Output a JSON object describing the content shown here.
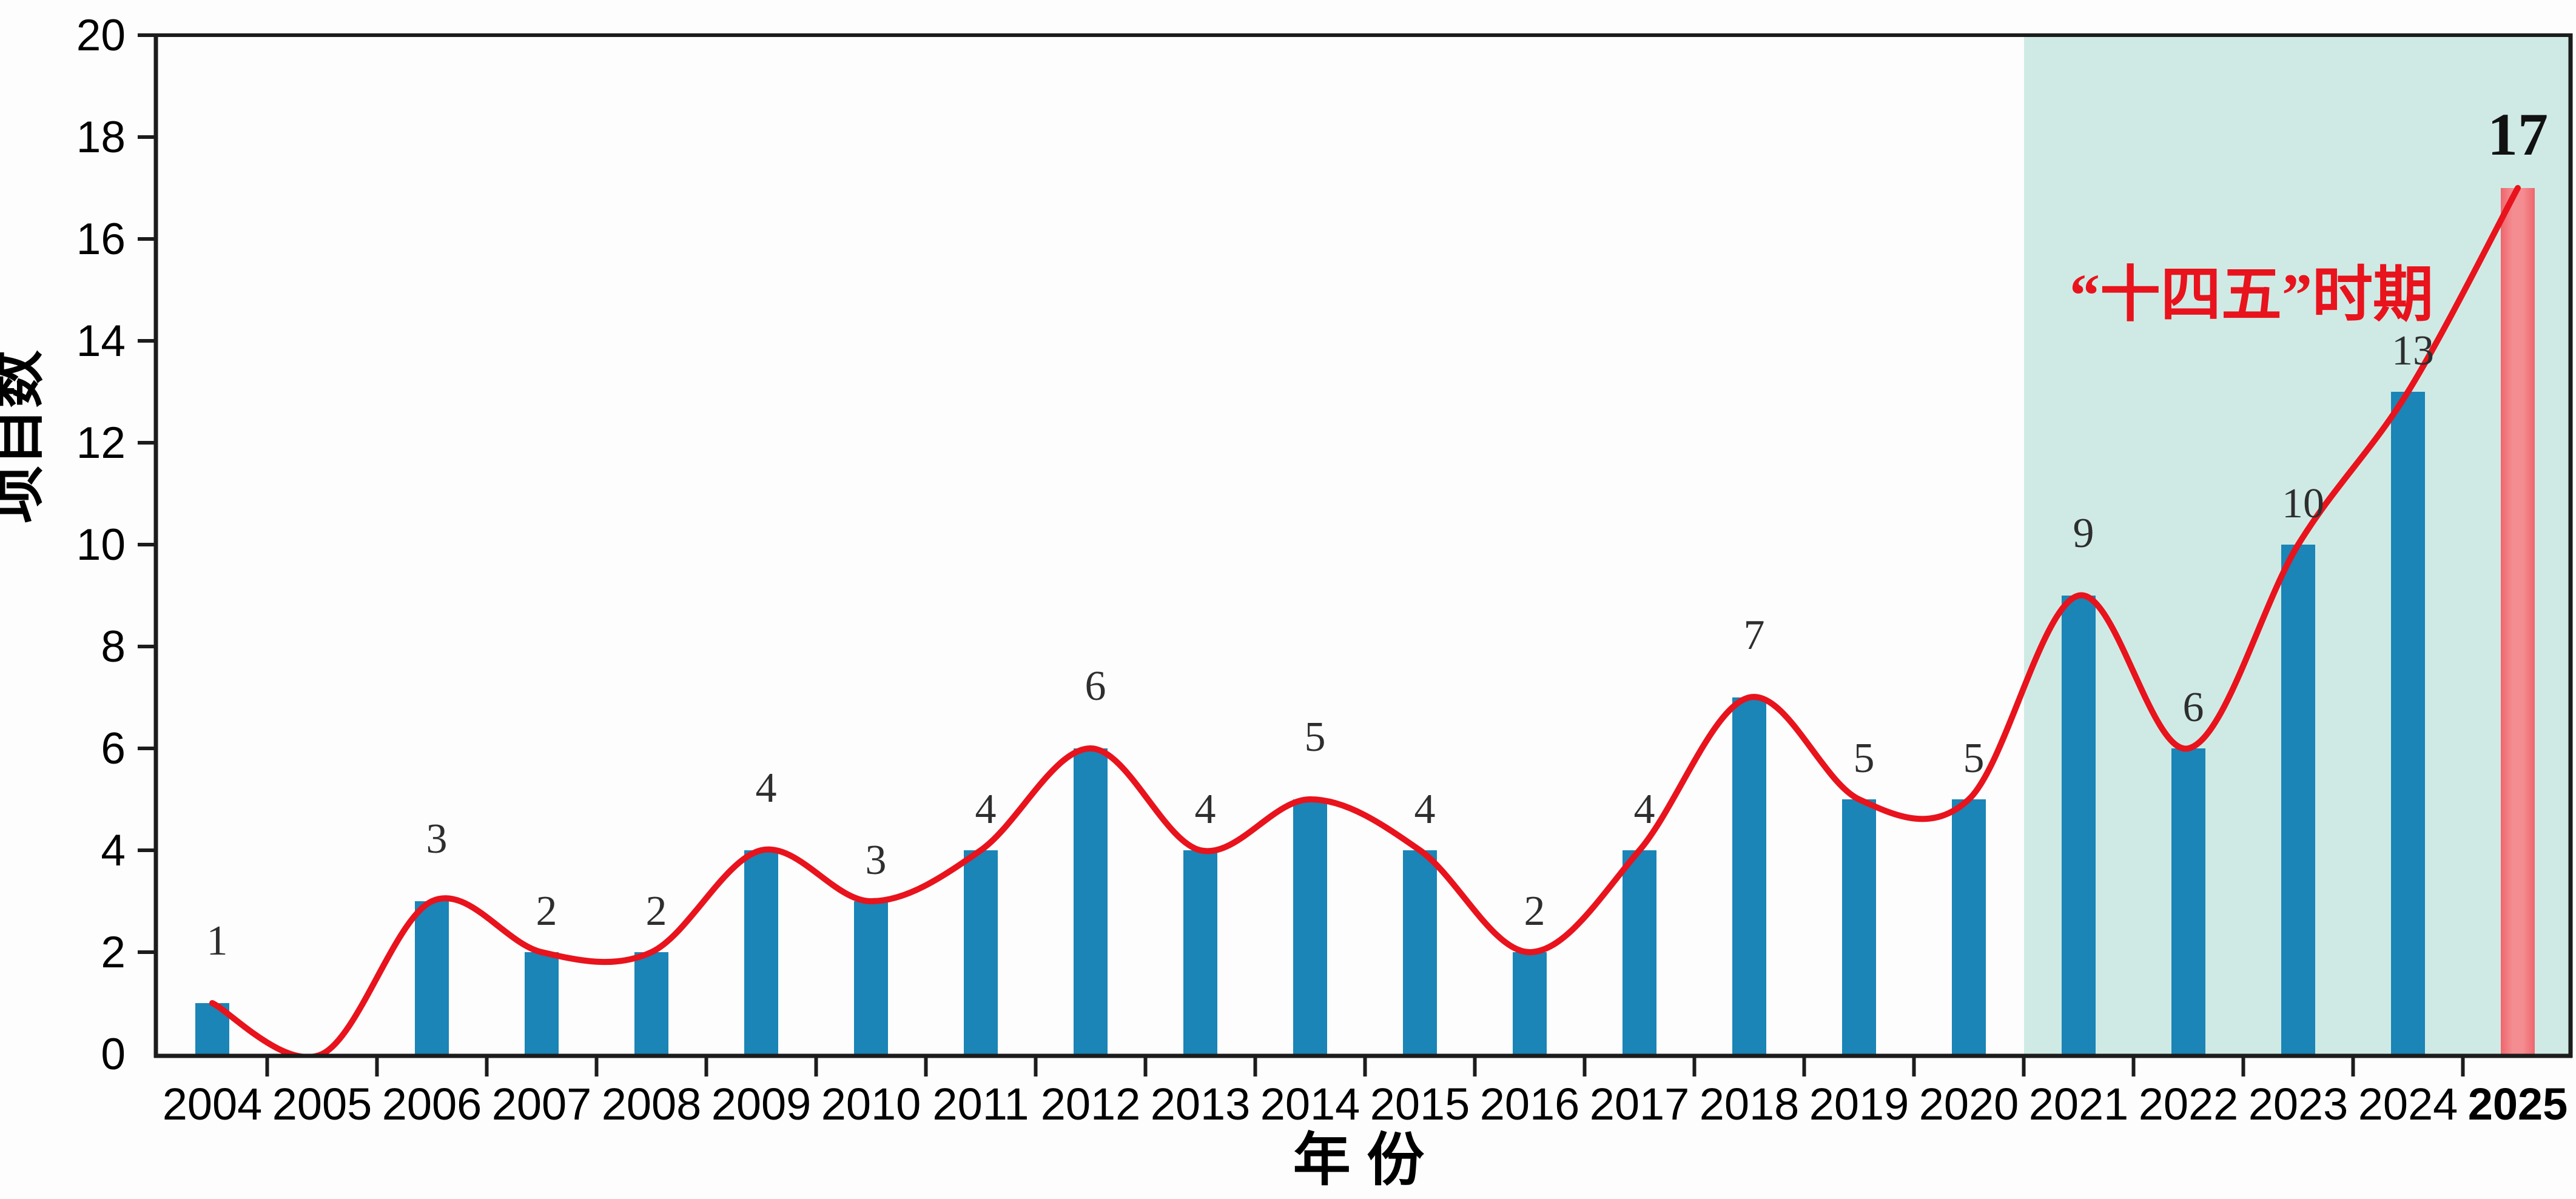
{
  "chart_data": {
    "type": "bar",
    "title": "",
    "xlabel": "年 份",
    "ylabel": "项目数",
    "ylim": [
      0,
      20
    ],
    "yticks": [
      0,
      2,
      4,
      6,
      8,
      10,
      12,
      14,
      16,
      18,
      20
    ],
    "grid": false,
    "legend_position": "none",
    "categories": [
      "2004",
      "2005",
      "2006",
      "2007",
      "2008",
      "2009",
      "2010",
      "2011",
      "2012",
      "2013",
      "2014",
      "2015",
      "2016",
      "2017",
      "2018",
      "2019",
      "2020",
      "2021",
      "2022",
      "2023",
      "2024",
      "2025"
    ],
    "series": [
      {
        "name": "项目数-柱状",
        "type": "bar",
        "values": [
          1,
          0,
          3,
          2,
          2,
          4,
          3,
          4,
          6,
          4,
          5,
          4,
          2,
          4,
          7,
          5,
          5,
          9,
          6,
          10,
          13,
          17
        ]
      },
      {
        "name": "项目数-趋势线",
        "type": "line",
        "values": [
          1,
          0,
          3,
          2,
          2,
          4,
          3,
          4,
          6,
          4,
          5,
          4,
          2,
          4,
          7,
          5,
          5,
          9,
          6,
          10,
          13,
          17
        ]
      }
    ],
    "bar_value_labels": [
      "1",
      "",
      "3",
      "2",
      "2",
      "4",
      "3",
      "4",
      "6",
      "4",
      "5",
      "4",
      "2",
      "4",
      "7",
      "5",
      "5",
      "9",
      "6",
      "10",
      "13",
      "17"
    ],
    "emphasized_category": "2025",
    "emphasized_value": "17",
    "highlight_region": {
      "label": "“十四五”时期",
      "start_category": "2021",
      "end_category": "2025",
      "fill": "#cfeae5",
      "label_color": "#e8131c"
    },
    "colors": {
      "bar": "#1a85b6",
      "bar_emphasized": "#ef6a70",
      "line": "#e8131c",
      "axis": "#1c1c1c",
      "value_label": "#2e2e2e",
      "tick_label": "#000000",
      "background": "#fdfdfd"
    }
  }
}
